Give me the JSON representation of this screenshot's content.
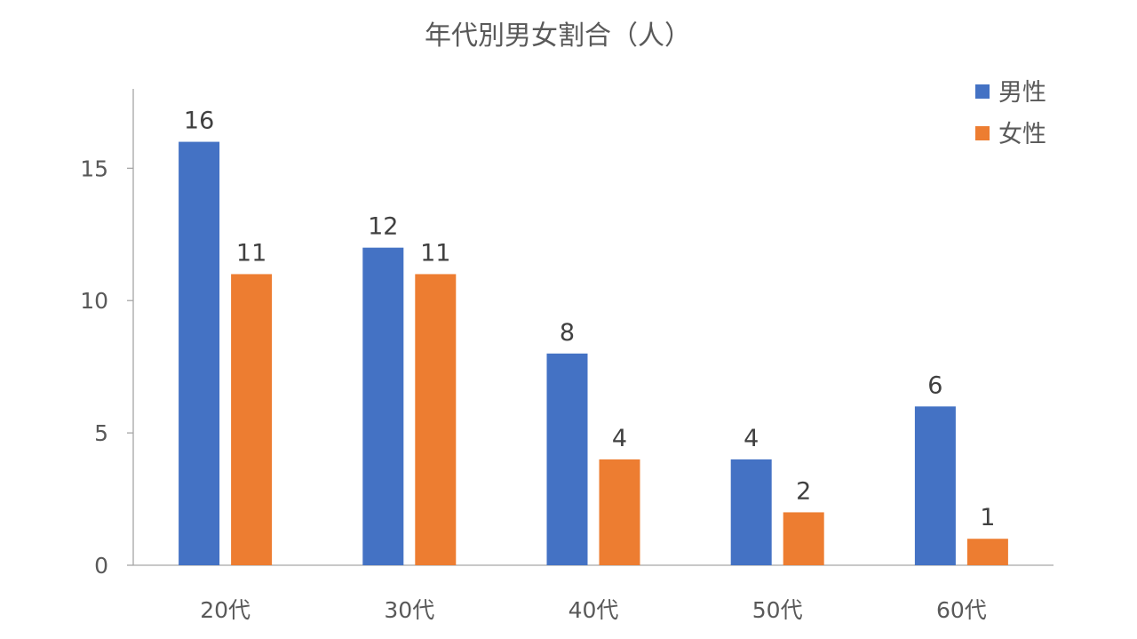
{
  "chart_data": {
    "type": "bar",
    "title": "年代別男女割合（人）",
    "categories": [
      "20代",
      "30代",
      "40代",
      "50代",
      "60代"
    ],
    "series": [
      {
        "name": "男性",
        "values": [
          16,
          12,
          8,
          4,
          6
        ],
        "color": "#4472C4"
      },
      {
        "name": "女性",
        "values": [
          11,
          11,
          4,
          2,
          1
        ],
        "color": "#ED7D31"
      }
    ],
    "yticks": [
      "0",
      "5",
      "10",
      "15"
    ],
    "ylim": [
      0,
      18
    ],
    "grid": false,
    "data_labels": true,
    "legend_position": "top-right",
    "axis_color": "#A6A6A6"
  }
}
